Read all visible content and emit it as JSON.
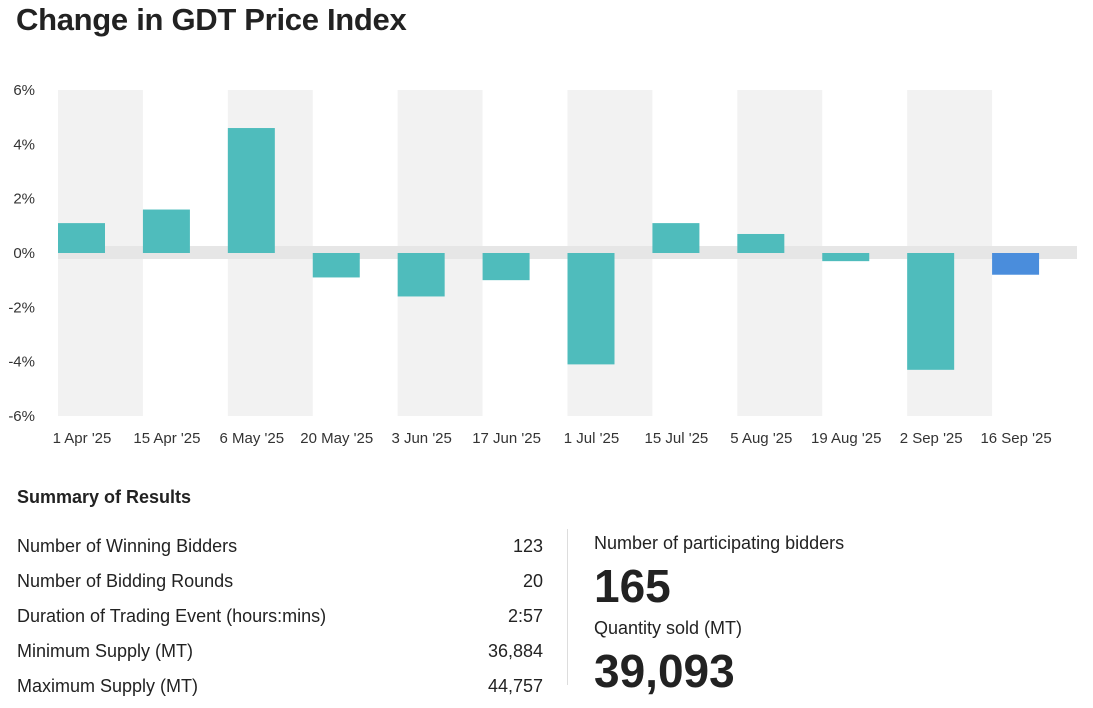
{
  "title": "Change in GDT Price Index",
  "chart_data": {
    "type": "bar",
    "title": "Change in GDT Price Index",
    "categories": [
      "1 Apr '25",
      "15 Apr '25",
      "6 May '25",
      "20 May '25",
      "3 Jun '25",
      "17 Jun '25",
      "1 Jul '25",
      "15 Jul '25",
      "5 Aug '25",
      "19 Aug '25",
      "2 Sep '25",
      "16 Sep '25"
    ],
    "values": [
      1.1,
      1.6,
      4.6,
      -0.9,
      -1.6,
      -1.0,
      -4.1,
      1.1,
      0.7,
      -0.3,
      -4.3,
      -0.8
    ],
    "yticks": [
      "6%",
      "4%",
      "2%",
      "0%",
      "-2%",
      "-4%",
      "-6%"
    ],
    "ylim": [
      -6,
      6
    ],
    "xlabel": "",
    "ylabel": "",
    "grid": true,
    "colors": {
      "bar": "#4fbcbc",
      "latest": "#4a8ddc",
      "band": "#f2f2f2",
      "zero_line": "#e6e6e6"
    }
  },
  "summary": {
    "title": "Summary of Results",
    "rows": [
      {
        "label": "Number of Winning Bidders",
        "value": "123"
      },
      {
        "label": "Number of Bidding Rounds",
        "value": "20"
      },
      {
        "label": "Duration of Trading Event (hours:mins)",
        "value": "2:57"
      },
      {
        "label": "Minimum Supply (MT)",
        "value": "36,884"
      },
      {
        "label": "Maximum Supply (MT)",
        "value": "44,757"
      }
    ]
  },
  "kpis": {
    "participating_label": "Number of participating bidders",
    "participating_value": "165",
    "quantity_label": "Quantity sold (MT)",
    "quantity_value": "39,093"
  }
}
